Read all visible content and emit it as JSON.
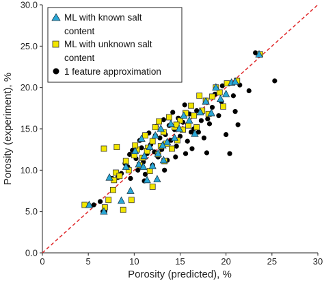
{
  "chart_data": {
    "type": "scatter",
    "xlabel": "Porosity (predicted), %",
    "ylabel": "Porosity (experiment),  %",
    "xlim": [
      0,
      30
    ],
    "ylim": [
      0,
      30
    ],
    "x_ticks": [
      "0",
      "5",
      "10",
      "15",
      "20",
      "25",
      "30"
    ],
    "y_ticks": [
      "0.0",
      "5.0",
      "10.0",
      "15.0",
      "20.0",
      "25.0",
      "30.0"
    ],
    "reference_line": {
      "from": [
        0,
        0
      ],
      "to": [
        30,
        30
      ],
      "color": "#e0282a",
      "style": "dashed"
    },
    "grid": false,
    "legend_position": "top-left",
    "legend": [
      {
        "lines": [
          "ML with known salt",
          "content"
        ],
        "marker": "triangle",
        "color": "#2aa7d6"
      },
      {
        "lines": [
          "ML with unknown salt",
          "content"
        ],
        "marker": "square",
        "color": "#f2e600"
      },
      {
        "lines": [
          "1 feature approximation"
        ],
        "marker": "circle",
        "color": "#000000"
      }
    ],
    "series": [
      {
        "marker": "circle",
        "color": "#000000",
        "points": [
          [
            5.6,
            5.8
          ],
          [
            6.3,
            6.2
          ],
          [
            6.6,
            5.0
          ],
          [
            6.8,
            5.0
          ],
          [
            7.6,
            9.0
          ],
          [
            8.2,
            9.1
          ],
          [
            8.6,
            9.6
          ],
          [
            9.0,
            10.8
          ],
          [
            9.3,
            10.4
          ],
          [
            9.6,
            9.0
          ],
          [
            9.8,
            12.4
          ],
          [
            10.2,
            11.4
          ],
          [
            10.4,
            10.0
          ],
          [
            10.6,
            13.6
          ],
          [
            10.8,
            12.7
          ],
          [
            11.0,
            11.0
          ],
          [
            11.2,
            9.5
          ],
          [
            11.4,
            12.0
          ],
          [
            11.6,
            14.5
          ],
          [
            11.8,
            13.1
          ],
          [
            12.0,
            10.6
          ],
          [
            12.2,
            12.2
          ],
          [
            12.4,
            15.3
          ],
          [
            12.6,
            11.6
          ],
          [
            12.8,
            13.9
          ],
          [
            13.0,
            12.5
          ],
          [
            13.2,
            16.1
          ],
          [
            13.4,
            14.3
          ],
          [
            13.6,
            11.2
          ],
          [
            13.8,
            15.4
          ],
          [
            14.0,
            13.6
          ],
          [
            14.2,
            17.0
          ],
          [
            14.4,
            14.9
          ],
          [
            14.6,
            12.9
          ],
          [
            14.8,
            16.3
          ],
          [
            15.0,
            14.1
          ],
          [
            15.3,
            15.8
          ],
          [
            15.5,
            17.9
          ],
          [
            15.8,
            13.5
          ],
          [
            16.0,
            16.8
          ],
          [
            16.3,
            12.6
          ],
          [
            16.5,
            15.0
          ],
          [
            16.8,
            17.2
          ],
          [
            17.0,
            14.6
          ],
          [
            17.3,
            16.0
          ],
          [
            17.6,
            13.9
          ],
          [
            17.9,
            12.1
          ],
          [
            18.2,
            15.6
          ],
          [
            18.5,
            17.6
          ],
          [
            18.8,
            19.2
          ],
          [
            19.2,
            16.6
          ],
          [
            19.5,
            18.3
          ],
          [
            20.0,
            14.3
          ],
          [
            20.4,
            12.0
          ],
          [
            20.8,
            19.0
          ],
          [
            21.0,
            17.1
          ],
          [
            21.3,
            15.5
          ],
          [
            21.5,
            20.3
          ],
          [
            22.5,
            19.6
          ],
          [
            23.2,
            24.2
          ],
          [
            25.3,
            20.8
          ],
          [
            9.5,
            11.9
          ],
          [
            12.3,
            14.2
          ],
          [
            14.5,
            11.6
          ],
          [
            16.2,
            14.6
          ],
          [
            11.1,
            8.7
          ],
          [
            13.3,
            10.0
          ],
          [
            15.6,
            12.0
          ],
          [
            18.0,
            16.2
          ],
          [
            19.6,
            20.2
          ]
        ]
      },
      {
        "marker": "square",
        "color": "#f2e600",
        "points": [
          [
            4.6,
            5.8
          ],
          [
            6.8,
            5.5
          ],
          [
            7.2,
            6.4
          ],
          [
            7.8,
            8.8
          ],
          [
            8.0,
            9.7
          ],
          [
            8.4,
            9.3
          ],
          [
            8.8,
            5.2
          ],
          [
            9.1,
            11.1
          ],
          [
            9.4,
            10.0
          ],
          [
            9.7,
            6.4
          ],
          [
            10.0,
            11.8
          ],
          [
            10.3,
            12.5
          ],
          [
            10.6,
            10.6
          ],
          [
            10.9,
            11.5
          ],
          [
            11.2,
            14.2
          ],
          [
            11.5,
            12.7
          ],
          [
            11.7,
            9.9
          ],
          [
            12.0,
            13.5
          ],
          [
            12.3,
            15.2
          ],
          [
            12.6,
            11.9
          ],
          [
            12.9,
            12.9
          ],
          [
            13.2,
            14.6
          ],
          [
            13.5,
            13.2
          ],
          [
            13.8,
            16.4
          ],
          [
            14.1,
            12.6
          ],
          [
            14.4,
            15.2
          ],
          [
            14.7,
            13.6
          ],
          [
            15.0,
            16.0
          ],
          [
            15.3,
            14.9
          ],
          [
            15.6,
            16.9
          ],
          [
            15.9,
            15.4
          ],
          [
            16.2,
            17.8
          ],
          [
            16.5,
            16.6
          ],
          [
            16.8,
            15.2
          ],
          [
            17.1,
            19.0
          ],
          [
            17.4,
            17.2
          ],
          [
            17.8,
            18.4
          ],
          [
            18.1,
            16.8
          ],
          [
            18.5,
            18.9
          ],
          [
            18.9,
            20.0
          ],
          [
            19.3,
            19.4
          ],
          [
            19.7,
            17.7
          ],
          [
            20.1,
            20.5
          ],
          [
            21.2,
            20.8
          ],
          [
            23.7,
            24.0
          ],
          [
            6.7,
            12.6
          ],
          [
            7.7,
            7.6
          ],
          [
            8.1,
            12.8
          ],
          [
            12.0,
            8.0
          ],
          [
            13.3,
            11.1
          ],
          [
            14.6,
            15.5
          ],
          [
            11.4,
            12.3
          ],
          [
            10.1,
            13.0
          ],
          [
            12.7,
            15.9
          ]
        ]
      },
      {
        "marker": "triangle",
        "color": "#2aa7d6",
        "points": [
          [
            5.1,
            5.8
          ],
          [
            6.7,
            5.0
          ],
          [
            7.3,
            9.1
          ],
          [
            8.6,
            6.3
          ],
          [
            9.1,
            10.4
          ],
          [
            9.6,
            7.5
          ],
          [
            10.1,
            12.3
          ],
          [
            10.5,
            10.7
          ],
          [
            10.8,
            13.8
          ],
          [
            11.1,
            11.7
          ],
          [
            11.4,
            8.8
          ],
          [
            11.7,
            12.8
          ],
          [
            12.0,
            10.5
          ],
          [
            12.3,
            14.2
          ],
          [
            12.6,
            12.0
          ],
          [
            12.9,
            15.0
          ],
          [
            13.2,
            11.2
          ],
          [
            13.6,
            13.4
          ],
          [
            14.0,
            15.6
          ],
          [
            14.4,
            13.9
          ],
          [
            14.9,
            15.0
          ],
          [
            15.4,
            16.6
          ],
          [
            16.0,
            16.0
          ],
          [
            16.6,
            14.4
          ],
          [
            17.2,
            17.0
          ],
          [
            17.8,
            18.3
          ],
          [
            18.4,
            16.9
          ],
          [
            18.9,
            20.0
          ],
          [
            19.4,
            18.6
          ],
          [
            20.0,
            19.2
          ],
          [
            20.6,
            20.6
          ],
          [
            21.0,
            20.7
          ],
          [
            23.6,
            24.0
          ],
          [
            12.5,
            8.9
          ],
          [
            13.1,
            13.0
          ],
          [
            11.0,
            10.4
          ]
        ]
      }
    ]
  }
}
